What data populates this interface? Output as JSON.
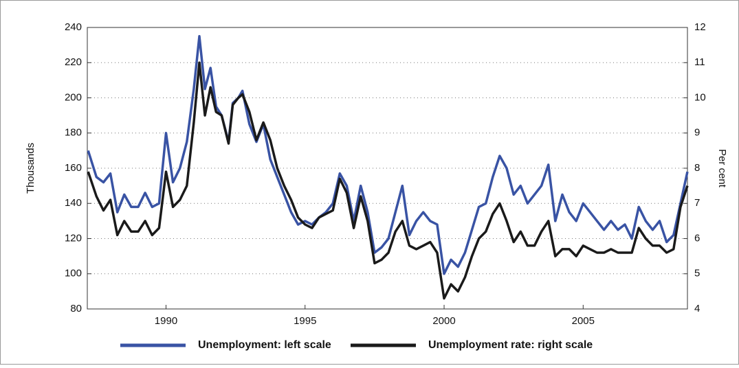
{
  "chart_data": {
    "type": "line",
    "y_label": "Thousands",
    "y2_label": "Per cent",
    "x": [
      1987.2,
      1987.5,
      1987.75,
      1988,
      1988.25,
      1988.5,
      1988.75,
      1989,
      1989.25,
      1989.5,
      1989.75,
      1990,
      1990.25,
      1990.5,
      1990.75,
      1991,
      1991.2,
      1991.4,
      1991.6,
      1991.8,
      1992,
      1992.25,
      1992.4,
      1992.6,
      1992.75,
      1993,
      1993.25,
      1993.5,
      1993.75,
      1994,
      1994.25,
      1994.5,
      1994.75,
      1995,
      1995.25,
      1995.5,
      1995.75,
      1996,
      1996.25,
      1996.5,
      1996.75,
      1997,
      1997.25,
      1997.5,
      1997.75,
      1998,
      1998.25,
      1998.5,
      1998.75,
      1999,
      1999.25,
      1999.5,
      1999.75,
      2000,
      2000.25,
      2000.5,
      2000.75,
      2001,
      2001.25,
      2001.5,
      2001.75,
      2002,
      2002.25,
      2002.5,
      2002.75,
      2003,
      2003.25,
      2003.5,
      2003.75,
      2004,
      2004.25,
      2004.5,
      2004.75,
      2005,
      2005.25,
      2005.5,
      2005.75,
      2006,
      2006.25,
      2006.5,
      2006.75,
      2007,
      2007.25,
      2007.5,
      2007.75,
      2008,
      2008.25,
      2008.5,
      2008.75
    ],
    "series": [
      {
        "name": "Unemployment: left scale",
        "color": "#3953a4",
        "values": [
          170,
          155,
          152,
          157,
          135,
          145,
          138,
          138,
          146,
          138,
          140,
          180,
          152,
          160,
          175,
          205,
          235,
          205,
          217,
          195,
          190,
          175,
          197,
          200,
          204,
          185,
          175,
          185,
          165,
          155,
          145,
          135,
          128,
          130,
          128,
          132,
          135,
          140,
          157,
          150,
          130,
          150,
          135,
          112,
          115,
          120,
          135,
          150,
          122,
          130,
          135,
          130,
          128,
          100,
          108,
          104,
          112,
          125,
          138,
          140,
          155,
          167,
          160,
          145,
          150,
          140,
          145,
          150,
          162,
          130,
          145,
          135,
          130,
          140,
          135,
          130,
          125,
          130,
          125,
          128,
          120,
          138,
          130,
          125,
          130,
          118,
          122,
          140,
          158
        ]
      },
      {
        "name": "Unemployment rate: right scale",
        "color": "#1a1a1a",
        "axis": "y2",
        "values": [
          7.9,
          7.2,
          6.8,
          7.1,
          6.1,
          6.5,
          6.2,
          6.2,
          6.5,
          6.1,
          6.3,
          7.9,
          6.9,
          7.1,
          7.5,
          9.3,
          11.0,
          9.5,
          10.3,
          9.6,
          9.5,
          8.7,
          9.8,
          10.0,
          10.1,
          9.6,
          8.8,
          9.3,
          8.8,
          8.0,
          7.5,
          7.1,
          6.6,
          6.4,
          6.3,
          6.6,
          6.7,
          6.8,
          7.7,
          7.3,
          6.3,
          7.2,
          6.5,
          5.3,
          5.4,
          5.6,
          6.2,
          6.5,
          5.8,
          5.7,
          5.8,
          5.9,
          5.6,
          4.3,
          4.7,
          4.5,
          4.9,
          5.5,
          6.0,
          6.2,
          6.7,
          7.0,
          6.5,
          5.9,
          6.2,
          5.8,
          5.8,
          6.2,
          6.5,
          5.5,
          5.7,
          5.7,
          5.5,
          5.8,
          5.7,
          5.6,
          5.6,
          5.7,
          5.6,
          5.6,
          5.6,
          6.3,
          6.0,
          5.8,
          5.8,
          5.6,
          5.7,
          6.9,
          7.5
        ]
      }
    ],
    "xlim": [
      1987.17,
      2008.75
    ],
    "xticks": [
      1990,
      1995,
      2000,
      2005
    ],
    "ylim": [
      80,
      240
    ],
    "yticks": [
      80,
      100,
      120,
      140,
      160,
      180,
      200,
      220,
      240
    ],
    "y2lim": [
      4,
      12
    ],
    "y2ticks": [
      4,
      5,
      6,
      7,
      8,
      9,
      10,
      11,
      12
    ],
    "grid": true,
    "legend": "bottom"
  }
}
